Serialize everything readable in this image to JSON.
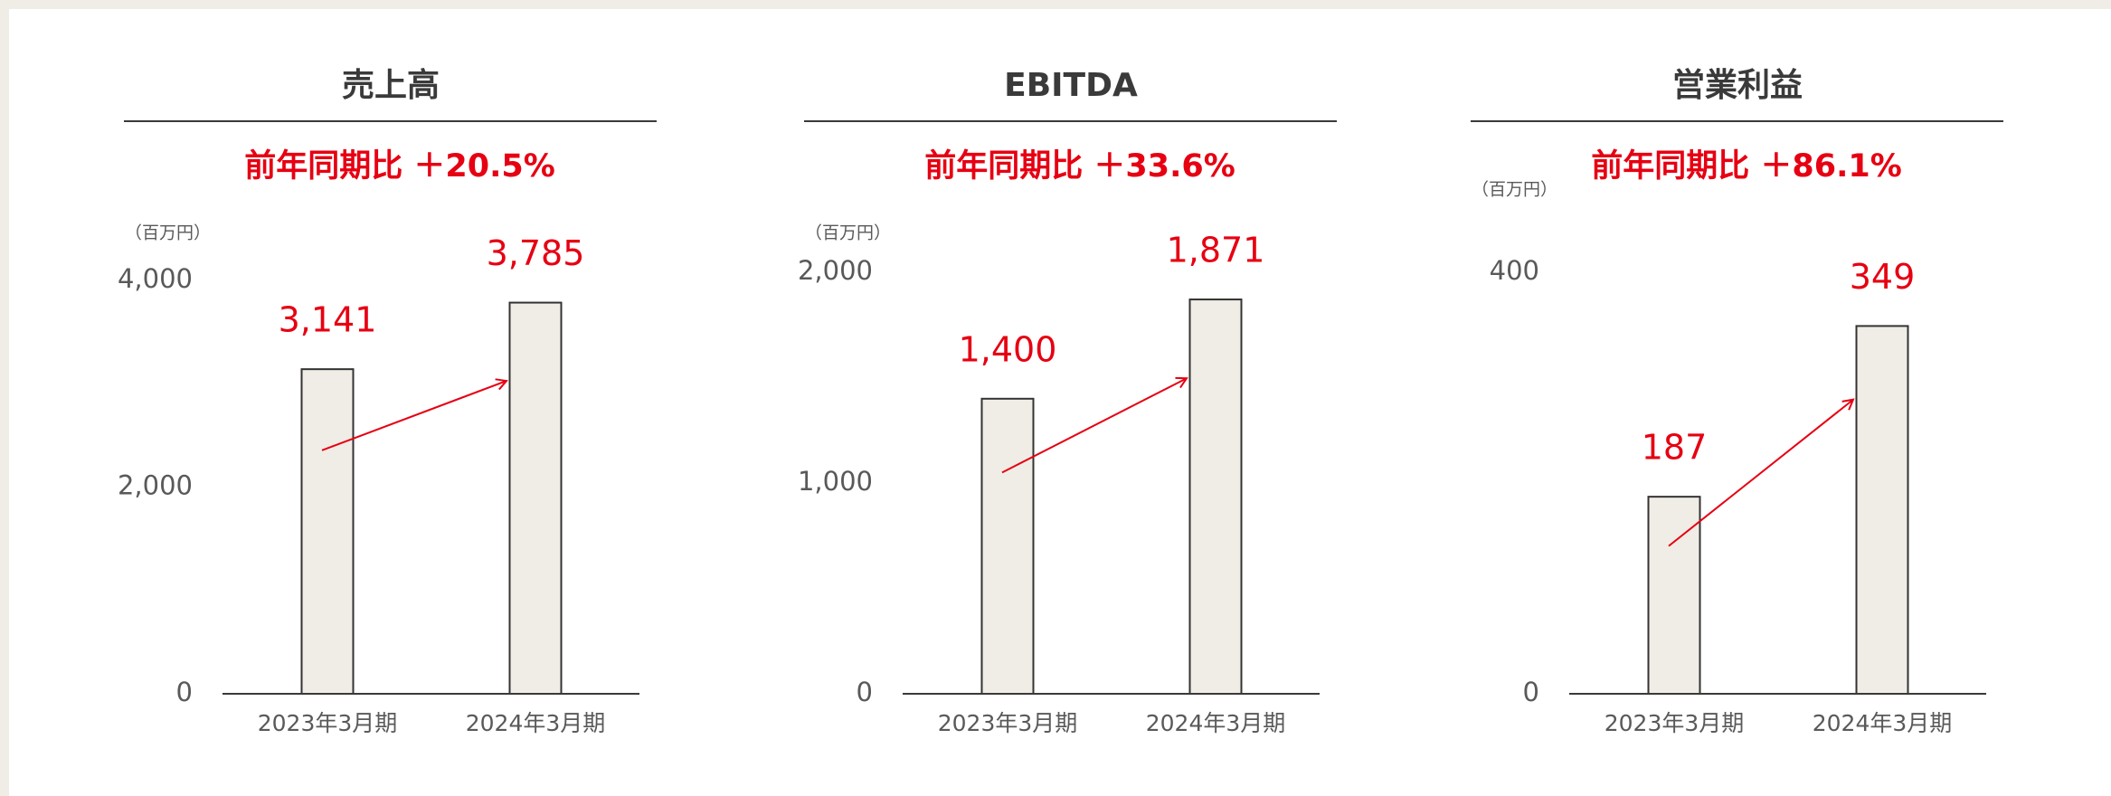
{
  "chart_data": [
    {
      "type": "bar",
      "title": "売上高",
      "subtitle": "前年同期比 ＋20.5%",
      "unit": "（百万円）",
      "categories": [
        "2023年3月期",
        "2024年3月期"
      ],
      "values": [
        3141,
        3785
      ],
      "value_labels": [
        "3,141",
        "3,785"
      ],
      "color": "#f0ede6",
      "value_color": "#e60012",
      "ylim": [
        0,
        4000
      ],
      "yticks": [
        0,
        {
          "value": 2000,
          "label": "2,000"
        },
        {
          "value": 4000,
          "label": "4,000"
        }
      ]
    },
    {
      "type": "bar",
      "title": "EBITDA",
      "subtitle": "前年同期比 ＋33.6%",
      "unit": "（百万円）",
      "categories": [
        "2023年3月期",
        "2024年3月期"
      ],
      "values": [
        1400,
        1871
      ],
      "value_labels": [
        "1,400",
        "1,871"
      ],
      "color": "#f0ede6",
      "value_color": "#e60012",
      "ylim": [
        0,
        2000
      ],
      "yticks": [
        0,
        {
          "value": 1000,
          "label": "1,000"
        },
        {
          "value": 2000,
          "label": "2,000"
        }
      ]
    },
    {
      "type": "bar",
      "title": "営業利益",
      "subtitle": "前年同期比 ＋86.1%",
      "unit": "（百万円）",
      "categories": [
        "2023年3月期",
        "2024年3月期"
      ],
      "values": [
        187,
        349
      ],
      "color": "#f0ede6",
      "value_color": "#e60012",
      "ylim": [
        0,
        400
      ],
      "yticks": [
        0,
        400
      ]
    }
  ]
}
